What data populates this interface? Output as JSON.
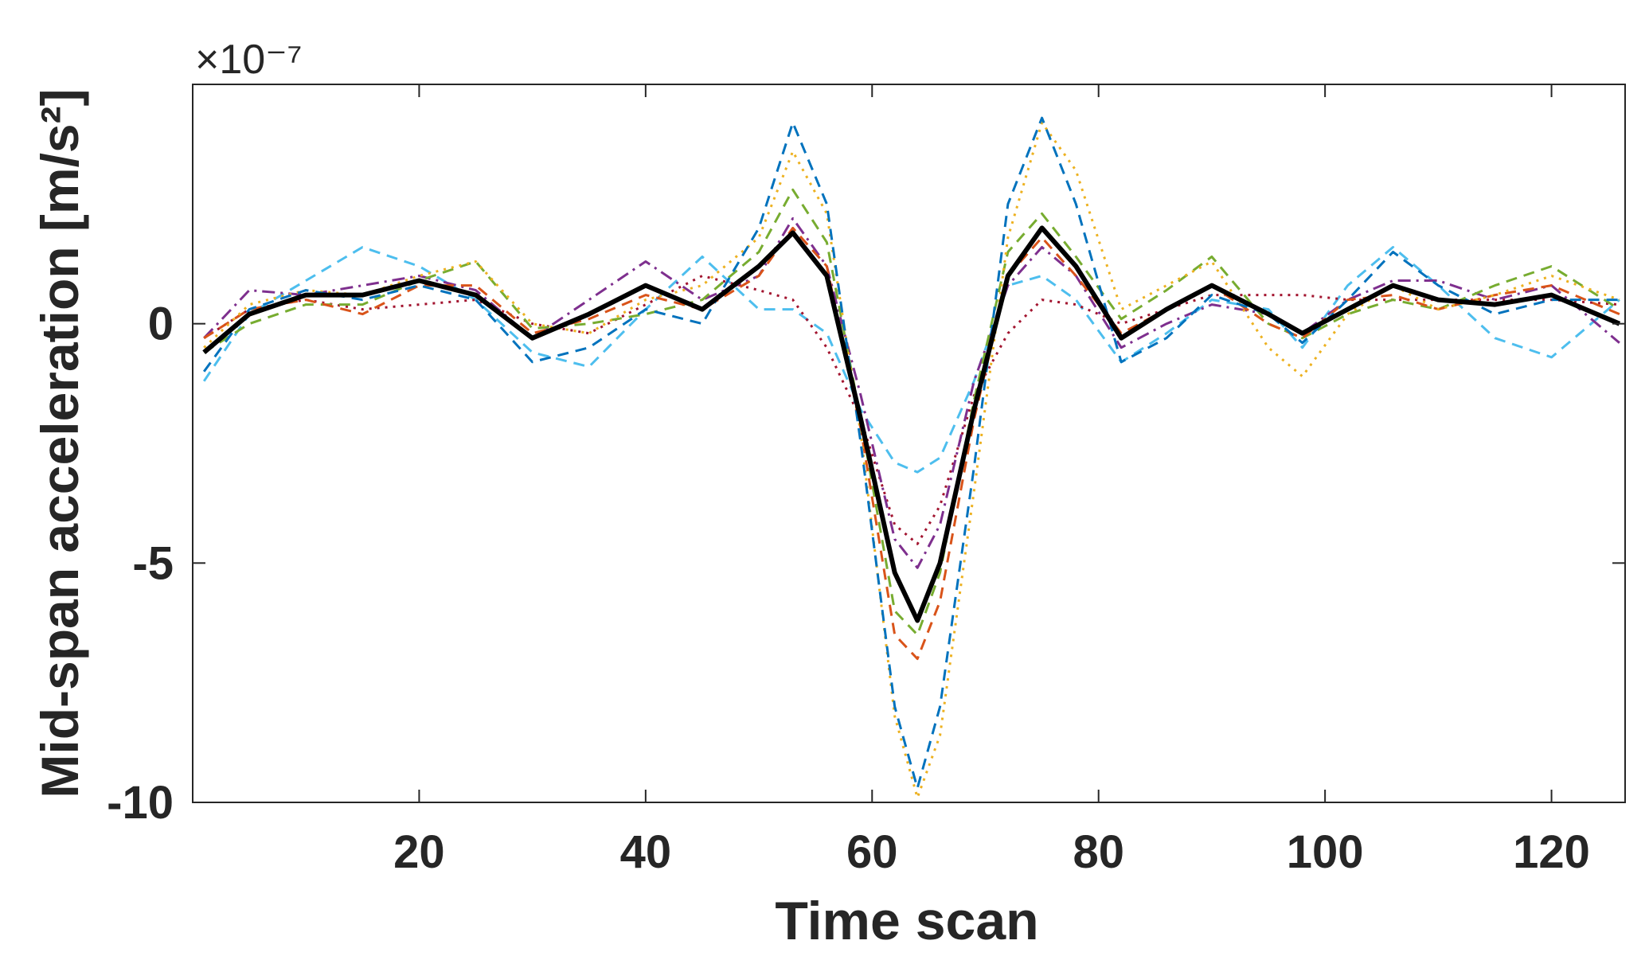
{
  "chart_data": {
    "type": "line",
    "xlabel": "Time scan",
    "ylabel": "Mid-span acceleration [m/s²]",
    "exponent_label": "×10⁻⁷",
    "x": [
      1,
      5,
      10,
      15,
      20,
      25,
      30,
      35,
      40,
      45,
      50,
      53,
      56,
      59,
      62,
      64,
      66,
      69,
      72,
      75,
      78,
      82,
      86,
      90,
      95,
      98,
      102,
      106,
      110,
      115,
      120,
      126
    ],
    "xlim": [
      0,
      126.5
    ],
    "xticks": [
      20,
      40,
      60,
      80,
      100,
      120
    ],
    "ylim": [
      -10,
      5
    ],
    "yticks": [
      -10,
      -5,
      0
    ],
    "grid": false,
    "series": [
      {
        "color": "#4DBEEE",
        "line_style": "dashed",
        "line_width": 3,
        "values": [
          -1.2,
          0.2,
          0.9,
          1.6,
          1.2,
          0.5,
          -0.6,
          -0.9,
          0.3,
          1.4,
          0.3,
          0.3,
          -0.2,
          -1.8,
          -2.9,
          -3.1,
          -2.8,
          -1.2,
          0.8,
          1.0,
          0.5,
          -0.8,
          -0.2,
          0.5,
          0.3,
          -0.5,
          0.8,
          1.6,
          0.8,
          -0.3,
          -0.7,
          0.5
        ]
      },
      {
        "color": "#A2142F",
        "line_style": "dotted",
        "line_width": 3,
        "values": [
          -0.3,
          0.3,
          0.5,
          0.3,
          0.4,
          0.5,
          0.0,
          -0.2,
          0.4,
          1.0,
          0.7,
          0.5,
          -0.5,
          -2.0,
          -4.2,
          -4.6,
          -3.8,
          -1.5,
          -0.2,
          0.5,
          0.4,
          0,
          0.3,
          0.6,
          0.6,
          0.6,
          0.5,
          0.5,
          0.5,
          0.5,
          0.5,
          0.4
        ]
      },
      {
        "color": "#7E2F8E",
        "line_style": "dash-dot",
        "line_width": 3,
        "values": [
          -0.3,
          0.7,
          0.6,
          0.8,
          1.0,
          0.7,
          -0.3,
          0.5,
          1.3,
          0.5,
          1.0,
          2.2,
          1.2,
          -1.5,
          -4.5,
          -5.1,
          -4.2,
          -1.2,
          0.8,
          1.6,
          1.0,
          -0.5,
          0,
          0.4,
          0.2,
          -0.2,
          0.5,
          0.9,
          0.9,
          0.5,
          0.8,
          -0.4
        ]
      },
      {
        "color": "#77AC30",
        "line_style": "dashed",
        "line_width": 3,
        "values": [
          -0.6,
          0.0,
          0.4,
          0.4,
          0.9,
          1.3,
          -0.1,
          0.0,
          0.2,
          0.5,
          1.5,
          2.8,
          1.7,
          -2.0,
          -6.0,
          -6.5,
          -5.2,
          -1.6,
          1.5,
          2.3,
          1.4,
          0.1,
          0.7,
          1.4,
          0.0,
          -0.3,
          0.2,
          0.5,
          0.3,
          0.8,
          1.2,
          0.3
        ]
      },
      {
        "color": "#D95319",
        "line_style": "dashed",
        "line_width": 3,
        "values": [
          -0.3,
          0.3,
          0.5,
          0.2,
          0.8,
          0.8,
          -0.2,
          0.1,
          0.6,
          0.3,
          1.0,
          2.0,
          1.2,
          -2.2,
          -6.5,
          -7.0,
          -5.8,
          -2.0,
          1.0,
          1.8,
          1.0,
          -0.2,
          0.3,
          0.8,
          0,
          -0.3,
          0.5,
          0.6,
          0.3,
          0.6,
          0.8,
          0.2
        ]
      },
      {
        "color": "#EDB120",
        "line_style": "dotted",
        "line_width": 3,
        "values": [
          -0.5,
          0.4,
          0.7,
          0.6,
          1.0,
          1.3,
          0,
          -0.2,
          0.5,
          0.8,
          1.8,
          3.6,
          2.3,
          -2.3,
          -8.2,
          -9.9,
          -8.6,
          -3.5,
          1.8,
          4.2,
          3.2,
          0.3,
          0.8,
          1.3,
          -0.5,
          -1.1,
          0.2,
          0.8,
          0.3,
          0.6,
          1.0,
          0.5
        ]
      },
      {
        "color": "#0072BD",
        "line_style": "dashed",
        "line_width": 3,
        "values": [
          -1.0,
          0.3,
          0.7,
          0.5,
          0.8,
          0.5,
          -0.8,
          -0.5,
          0.3,
          0,
          2.0,
          4.2,
          2.5,
          -2.5,
          -8.0,
          -9.7,
          -8.0,
          -3.0,
          2.5,
          4.3,
          2.5,
          -0.8,
          -0.3,
          0.6,
          0.2,
          -0.4,
          0.5,
          1.5,
          0.8,
          0.2,
          0.5,
          0.5
        ]
      },
      {
        "color": "#000000",
        "line_style": "solid",
        "line_width": 6,
        "values": [
          -0.6,
          0.2,
          0.6,
          0.6,
          0.9,
          0.6,
          -0.3,
          0.2,
          0.8,
          0.3,
          1.2,
          1.9,
          1.0,
          -2.0,
          -5.2,
          -6.2,
          -5.0,
          -1.8,
          1.0,
          2.0,
          1.2,
          -0.3,
          0.3,
          0.8,
          0.2,
          -0.2,
          0.3,
          0.8,
          0.5,
          0.4,
          0.6,
          0
        ]
      }
    ]
  }
}
